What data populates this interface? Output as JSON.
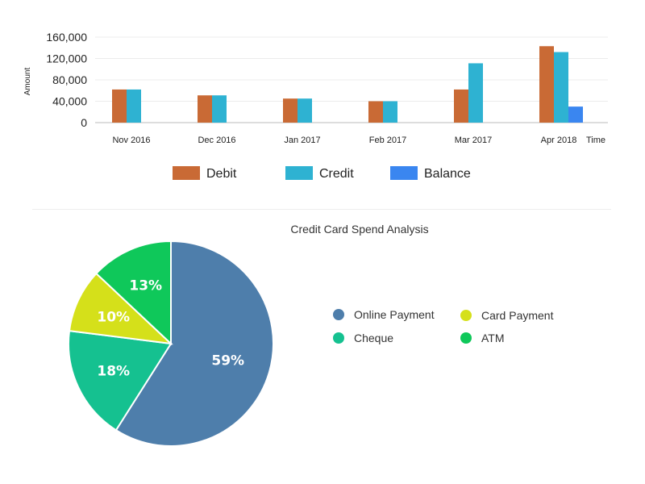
{
  "chart_data": [
    {
      "type": "bar",
      "ylabel": "Amount",
      "xlabel": "Time",
      "ylim": [
        0,
        160000
      ],
      "yticks": [
        "0",
        "40,000",
        "80,000",
        "120,000",
        "160,000"
      ],
      "grid": true,
      "legend_position": "bottom",
      "categories": [
        "Nov 2016",
        "Dec 2016",
        "Jan 2017",
        "Feb 2017",
        "Mar 2017",
        "Apr 2018"
      ],
      "series": [
        {
          "name": "Debit",
          "color": "#c96a35",
          "values": [
            62000,
            51000,
            45000,
            40000,
            62000,
            143000
          ]
        },
        {
          "name": "Credit",
          "color": "#2eb2d2",
          "values": [
            62000,
            51000,
            45000,
            40000,
            111000,
            132000
          ]
        },
        {
          "name": "Balance",
          "color": "#3a86f0",
          "values": [
            0,
            0,
            0,
            0,
            0,
            30000
          ]
        }
      ]
    },
    {
      "type": "pie",
      "title": "Credit Card Spend Analysis",
      "legend_position": "right",
      "slices": [
        {
          "name": "Online Payment",
          "value": 59,
          "label": "59%",
          "color": "#4e7eab"
        },
        {
          "name": "Cheque",
          "value": 18,
          "label": "18%",
          "color": "#15c190"
        },
        {
          "name": "Card Payment",
          "value": 10,
          "label": "10%",
          "color": "#d5e01a"
        },
        {
          "name": "ATM",
          "value": 13,
          "label": "13%",
          "color": "#0fc85a"
        }
      ]
    }
  ]
}
